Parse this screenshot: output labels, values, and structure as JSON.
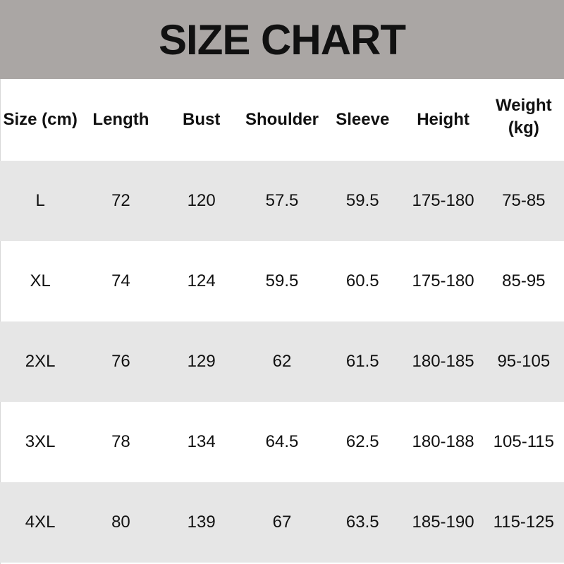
{
  "title": "SIZE CHART",
  "colors": {
    "header_bg": "#aaa6a4",
    "row_shade": "#e6e6e6"
  },
  "table": {
    "headers": [
      "Size (cm)",
      "Length",
      "Bust",
      "Shoulder",
      "Sleeve",
      "Height",
      "Weight\n(kg)"
    ],
    "rows": [
      [
        "L",
        "72",
        "120",
        "57.5",
        "59.5",
        "175-180",
        "75-85"
      ],
      [
        "XL",
        "74",
        "124",
        "59.5",
        "60.5",
        "175-180",
        "85-95"
      ],
      [
        "2XL",
        "76",
        "129",
        "62",
        "61.5",
        "180-185",
        "95-105"
      ],
      [
        "3XL",
        "78",
        "134",
        "64.5",
        "62.5",
        "180-188",
        "105-115"
      ],
      [
        "4XL",
        "80",
        "139",
        "67",
        "63.5",
        "185-190",
        "115-125"
      ]
    ]
  }
}
